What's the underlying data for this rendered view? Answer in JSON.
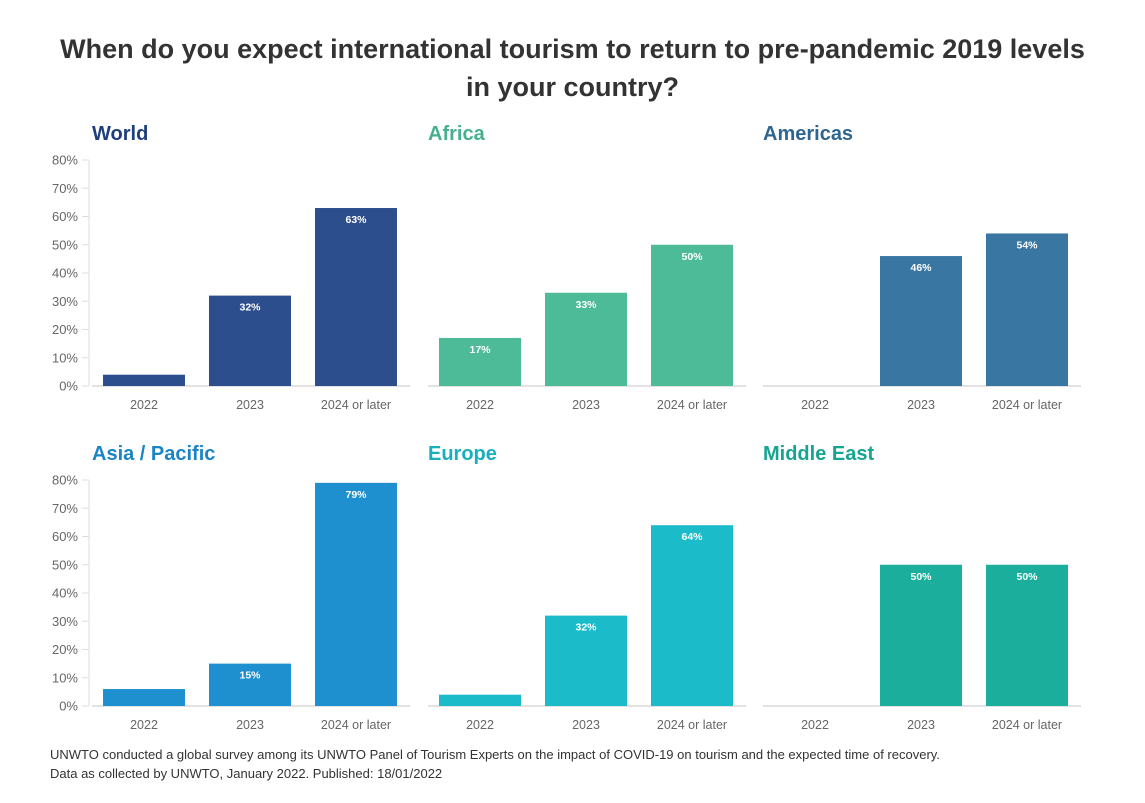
{
  "title": {
    "line1": "When do you expect international tourism to return to pre-pandemic 2019 levels",
    "line2": "in your country?"
  },
  "chart_data": [
    {
      "type": "bar",
      "title": "World",
      "color": "#2C4E8C",
      "title_color": "#1F3F7A",
      "categories": [
        "2022",
        "2023",
        "2024 or later"
      ],
      "values": [
        4,
        32,
        63
      ],
      "value_labels": [
        "",
        "32%",
        "63%"
      ],
      "ylim": [
        0,
        80
      ],
      "yticks": [
        "0%",
        "10%",
        "20%",
        "30%",
        "40%",
        "50%",
        "60%",
        "70%",
        "80%"
      ]
    },
    {
      "type": "bar",
      "title": "Africa",
      "color": "#4DBA98",
      "title_color": "#45B08F",
      "categories": [
        "2022",
        "2023",
        "2024 or later"
      ],
      "values": [
        17,
        33,
        50
      ],
      "value_labels": [
        "17%",
        "33%",
        "50%"
      ],
      "ylim": [
        0,
        80
      ]
    },
    {
      "type": "bar",
      "title": "Americas",
      "color": "#3A76A2",
      "title_color": "#2F6690",
      "categories": [
        "2022",
        "2023",
        "2024 or later"
      ],
      "values": [
        0,
        46,
        54
      ],
      "value_labels": [
        "",
        "46%",
        "54%"
      ],
      "ylim": [
        0,
        80
      ]
    },
    {
      "type": "bar",
      "title": "Asia / Pacific",
      "color": "#1E90CF",
      "title_color": "#1B84C4",
      "categories": [
        "2022",
        "2023",
        "2024 or later"
      ],
      "values": [
        6,
        15,
        79
      ],
      "value_labels": [
        "",
        "15%",
        "79%"
      ],
      "ylim": [
        0,
        80
      ],
      "yticks": [
        "0%",
        "10%",
        "20%",
        "30%",
        "40%",
        "50%",
        "60%",
        "70%",
        "80%"
      ]
    },
    {
      "type": "bar",
      "title": "Europe",
      "color": "#1CBBCA",
      "title_color": "#19AFC0",
      "categories": [
        "2022",
        "2023",
        "2024 or later"
      ],
      "values": [
        4,
        32,
        64
      ],
      "value_labels": [
        "",
        "32%",
        "64%"
      ],
      "ylim": [
        0,
        80
      ]
    },
    {
      "type": "bar",
      "title": "Middle East",
      "color": "#1CAE9C",
      "title_color": "#17A593",
      "categories": [
        "2022",
        "2023",
        "2024 or later"
      ],
      "values": [
        0,
        50,
        50
      ],
      "value_labels": [
        "",
        "50%",
        "50%"
      ],
      "ylim": [
        0,
        80
      ]
    }
  ],
  "footer": {
    "line1": "UNWTO conducted a global survey among its UNWTO Panel of Tourism Experts on the impact of COVID-19 on tourism and the expected time of recovery.",
    "line2": "Data as collected by UNWTO, January 2022. Published: 18/01/2022"
  }
}
